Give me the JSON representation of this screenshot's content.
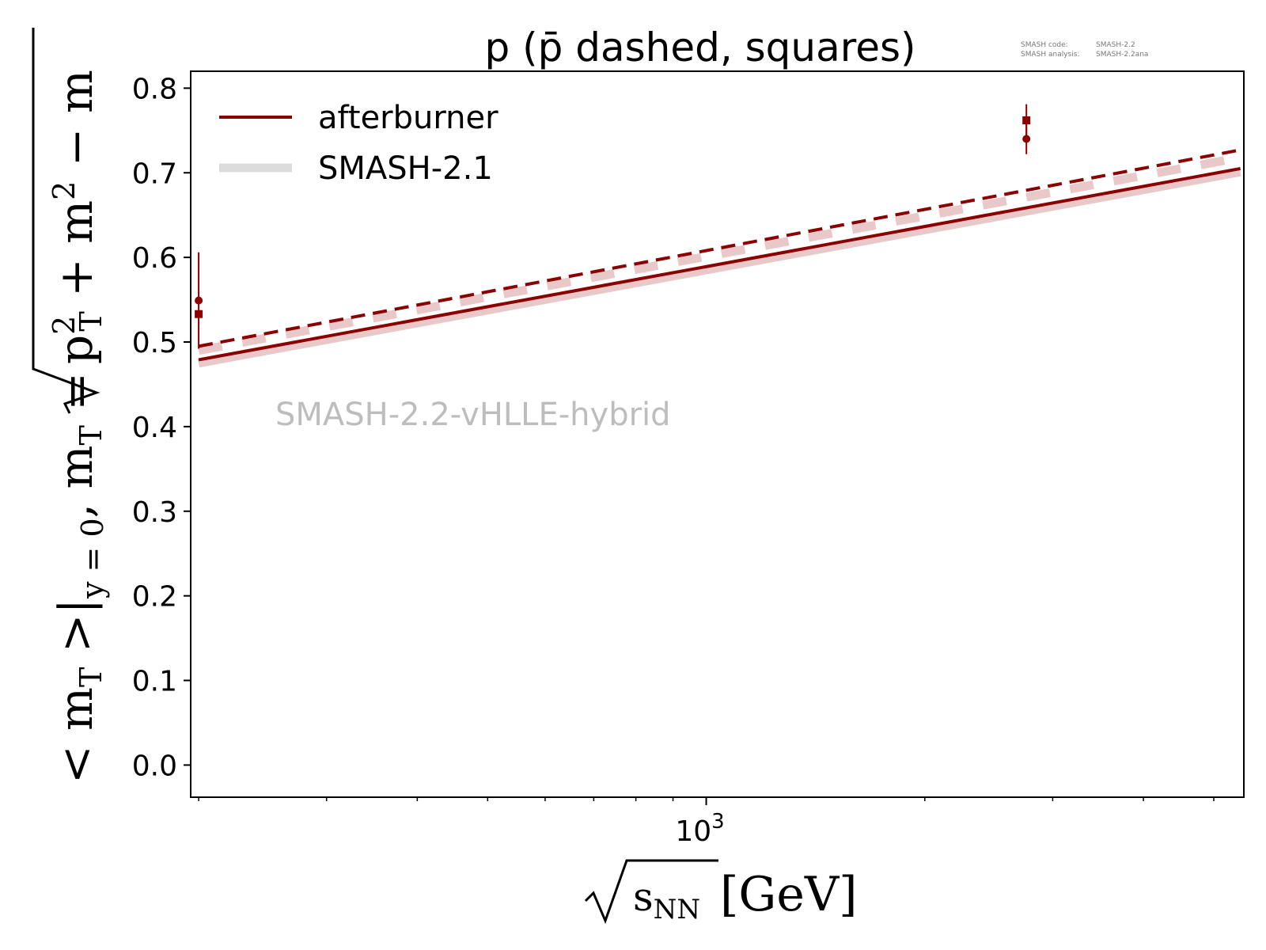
{
  "meta": {
    "code_label": "SMASH code:",
    "code_value": "SMASH-2.2",
    "analysis_label": "SMASH analysis:",
    "analysis_value": "SMASH-2.2ana"
  },
  "watermark": "SMASH-2.2-vHLLE-hybrid",
  "colors": {
    "afterburner": "#8b0000",
    "smash21_legend": "#dcdcdc",
    "smash21_band": "#e8c8c8"
  },
  "chart_data": {
    "type": "line",
    "title": "p (p̄ dashed, squares)",
    "xscale": "log",
    "xlim": [
      195,
      5500
    ],
    "ylim": [
      -0.038,
      0.82
    ],
    "x_tick_label": {
      "base": "10",
      "exp": "3",
      "value": 1000
    },
    "x_minor_ticks": [
      200,
      300,
      400,
      500,
      600,
      700,
      800,
      900,
      2000,
      3000,
      4000,
      5000
    ],
    "y_ticks": [
      0.0,
      0.1,
      0.2,
      0.3,
      0.4,
      0.5,
      0.6,
      0.7,
      0.8
    ],
    "y_tick_labels": [
      "0.0",
      "0.1",
      "0.2",
      "0.3",
      "0.4",
      "0.5",
      "0.6",
      "0.7",
      "0.8"
    ],
    "xlabel": {
      "sqrt_arg": "s",
      "sub": "NN",
      "unit": "[GeV]"
    },
    "ylabel": {
      "lhs": "< m",
      "lhs_sub": "T",
      "mid": " >|",
      "mid_sub": "y = 0",
      "mid2": ", m",
      "mid2_sub": "T",
      "eq": " = ",
      "rad_p": "p",
      "rad_p_sup": "2",
      "rad_p_sub": "T",
      "rad_plus": " + m",
      "rad_m_sup": "2",
      "tail": " − m"
    },
    "legend": {
      "position": "top-left",
      "entries": [
        {
          "label": "afterburner",
          "style": "afterburner"
        },
        {
          "label": "SMASH-2.1",
          "style": "smash21"
        }
      ]
    },
    "series": [
      {
        "name": "afterburner",
        "kind": "line",
        "dash": false,
        "x": [
          200,
          5440
        ],
        "y": [
          0.479,
          0.705
        ]
      },
      {
        "kind": "line",
        "dash": true,
        "x": [
          200,
          5440
        ],
        "y": [
          0.495,
          0.727
        ]
      },
      {
        "name": "SMASH-2.1",
        "kind": "band",
        "dash": false,
        "x": [
          200,
          5440
        ],
        "y": [
          0.475,
          0.701
        ]
      },
      {
        "kind": "band",
        "dash": true,
        "x": [
          200,
          5440
        ],
        "y": [
          0.49,
          0.718
        ]
      }
    ],
    "points": [
      {
        "marker": "circle",
        "x": 200,
        "y": 0.549,
        "err": 0.057
      },
      {
        "marker": "square",
        "x": 200,
        "y": 0.533,
        "err": 0.0
      },
      {
        "marker": "circle",
        "x": 2760,
        "y": 0.74,
        "err": 0.018
      },
      {
        "marker": "square",
        "x": 2760,
        "y": 0.762,
        "err": 0.019
      }
    ]
  }
}
